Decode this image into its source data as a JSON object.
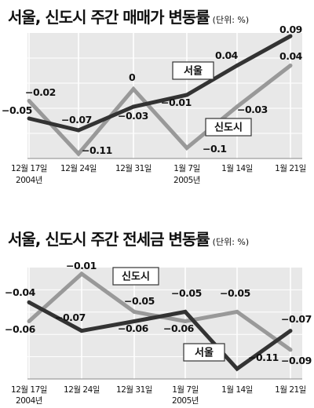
{
  "chart_data": [
    {
      "type": "line",
      "title": "서울, 신도시 주간 매매가 변동률",
      "unit": "(단위: %)",
      "categories": [
        "12월 17일",
        "12월 24일",
        "12월 31일",
        "1월 7일",
        "1월 14일",
        "1월 21일"
      ],
      "category_years": [
        "2004년",
        "",
        "",
        "2005년",
        "",
        ""
      ],
      "ylim": [
        -0.13,
        0.1
      ],
      "series": [
        {
          "name": "서울",
          "color": "#333333",
          "values": [
            -0.05,
            -0.07,
            -0.03,
            -0.01,
            0.04,
            0.09
          ],
          "labels": [
            "-0.05",
            "-0.07",
            "-0.03",
            "-0.01",
            "0.04",
            "0.09"
          ]
        },
        {
          "name": "신도시",
          "color": "#999999",
          "values": [
            -0.02,
            -0.11,
            0.0,
            -0.1,
            -0.03,
            0.04
          ],
          "labels": [
            "-0.02",
            "-0.11",
            "0",
            "-0.1",
            "-0.03",
            "0.04"
          ]
        }
      ]
    },
    {
      "type": "line",
      "title": "서울, 신도시 주간 전세금 변동률",
      "unit": "(단위: %)",
      "categories": [
        "12월 17일",
        "12월 24일",
        "12월 31일",
        "1월 7일",
        "1월 14일",
        "1월 21일"
      ],
      "category_years": [
        "2004년",
        "",
        "",
        "2005년",
        "",
        ""
      ],
      "ylim": [
        -0.125,
        0.0
      ],
      "series": [
        {
          "name": "서울",
          "color": "#333333",
          "values": [
            -0.04,
            -0.07,
            -0.06,
            -0.05,
            -0.11,
            -0.07
          ],
          "labels": [
            "-0.04",
            "-0.07",
            "-0.06",
            "-0.05",
            "-0.11",
            "-0.07"
          ]
        },
        {
          "name": "신도시",
          "color": "#999999",
          "values": [
            -0.06,
            -0.01,
            -0.05,
            -0.06,
            -0.05,
            -0.09
          ],
          "labels": [
            "-0.06",
            "-0.01",
            "-0.05",
            "-0.06",
            "-0.05",
            "-0.09"
          ]
        }
      ]
    }
  ]
}
